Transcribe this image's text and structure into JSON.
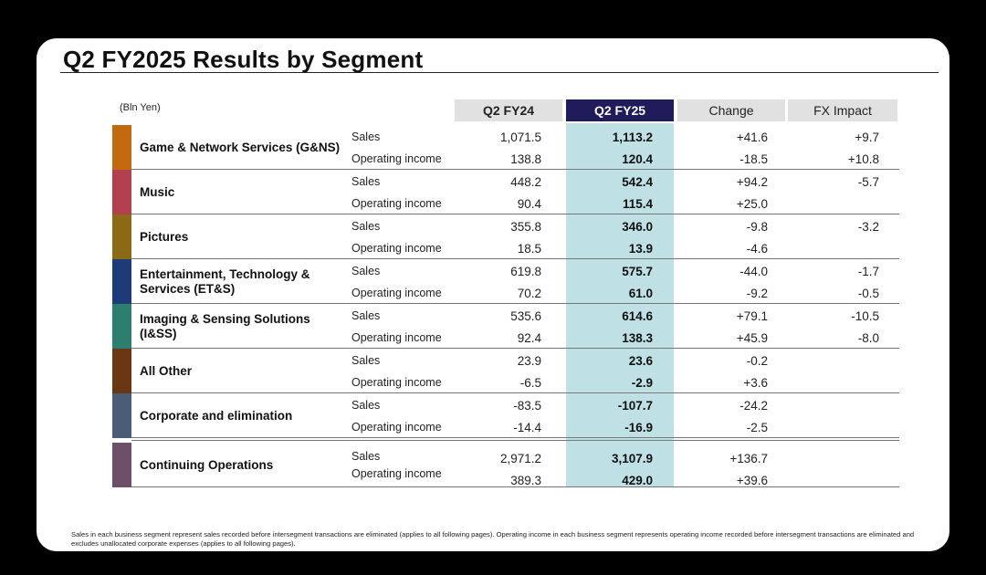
{
  "title": "Q2 FY2025 Results by Segment",
  "unit": "(Bln Yen)",
  "columns": {
    "fy24": "Q2 FY24",
    "fy25": "Q2 FY25",
    "change": "Change",
    "fx": "FX Impact"
  },
  "segments": [
    {
      "name": "Game & Network Services (G&NS)",
      "color": "#c36a10",
      "rows": [
        {
          "label": "Sales",
          "fy24": "1,071.5",
          "fy25": "1,113.2",
          "change": "+41.6",
          "fx": "+9.7"
        },
        {
          "label": "Operating income",
          "fy24": "138.8",
          "fy25": "120.4",
          "change": "-18.5",
          "fx": "+10.8"
        }
      ]
    },
    {
      "name": "Music",
      "color": "#b3404e",
      "rows": [
        {
          "label": "Sales",
          "fy24": "448.2",
          "fy25": "542.4",
          "change": "+94.2",
          "fx": "-5.7"
        },
        {
          "label": "Operating income",
          "fy24": "90.4",
          "fy25": "115.4",
          "change": "+25.0",
          "fx": ""
        }
      ]
    },
    {
      "name": "Pictures",
      "color": "#8c6914",
      "rows": [
        {
          "label": "Sales",
          "fy24": "355.8",
          "fy25": "346.0",
          "change": "-9.8",
          "fx": "-3.2"
        },
        {
          "label": "Operating income",
          "fy24": "18.5",
          "fy25": "13.9",
          "change": "-4.6",
          "fx": ""
        }
      ]
    },
    {
      "name": "Entertainment, Technology & Services (ET&S)",
      "color": "#1e3a78",
      "rows": [
        {
          "label": "Sales",
          "fy24": "619.8",
          "fy25": "575.7",
          "change": "-44.0",
          "fx": "-1.7"
        },
        {
          "label": "Operating income",
          "fy24": "70.2",
          "fy25": "61.0",
          "change": "-9.2",
          "fx": "-0.5"
        }
      ]
    },
    {
      "name": "Imaging & Sensing Solutions (I&SS)",
      "color": "#2d7e6e",
      "rows": [
        {
          "label": "Sales",
          "fy24": "535.6",
          "fy25": "614.6",
          "change": "+79.1",
          "fx": "-10.5"
        },
        {
          "label": "Operating income",
          "fy24": "92.4",
          "fy25": "138.3",
          "change": "+45.9",
          "fx": "-8.0"
        }
      ]
    },
    {
      "name": "All Other",
      "color": "#6b3712",
      "rows": [
        {
          "label": "Sales",
          "fy24": "23.9",
          "fy25": "23.6",
          "change": "-0.2",
          "fx": ""
        },
        {
          "label": "Operating income",
          "fy24": "-6.5",
          "fy25": "-2.9",
          "change": "+3.6",
          "fx": ""
        }
      ]
    },
    {
      "name": "Corporate and elimination",
      "color": "#4a5d78",
      "rows": [
        {
          "label": "Sales",
          "fy24": "-83.5",
          "fy25": "-107.7",
          "change": "-24.2",
          "fx": ""
        },
        {
          "label": "Operating income",
          "fy24": "-14.4",
          "fy25": "-16.9",
          "change": "-2.5",
          "fx": ""
        }
      ]
    }
  ],
  "total": {
    "name": "Continuing Operations",
    "color": "#6b5068",
    "rows": [
      {
        "label": "Sales",
        "fy24": "2,971.2",
        "fy25": "3,107.9",
        "change": "+136.7",
        "fx": ""
      },
      {
        "label": "Operating income",
        "fy24": "389.3",
        "fy25": "429.0",
        "change": "+39.6",
        "fx": ""
      }
    ]
  },
  "footnote": "Sales in each business segment represent sales recorded before intersegment transactions are eliminated (applies to all following pages). Operating income in each business segment represents operating income recorded before intersegment transactions are eliminated and excludes unallocated corporate expenses (applies to all following pages)."
}
